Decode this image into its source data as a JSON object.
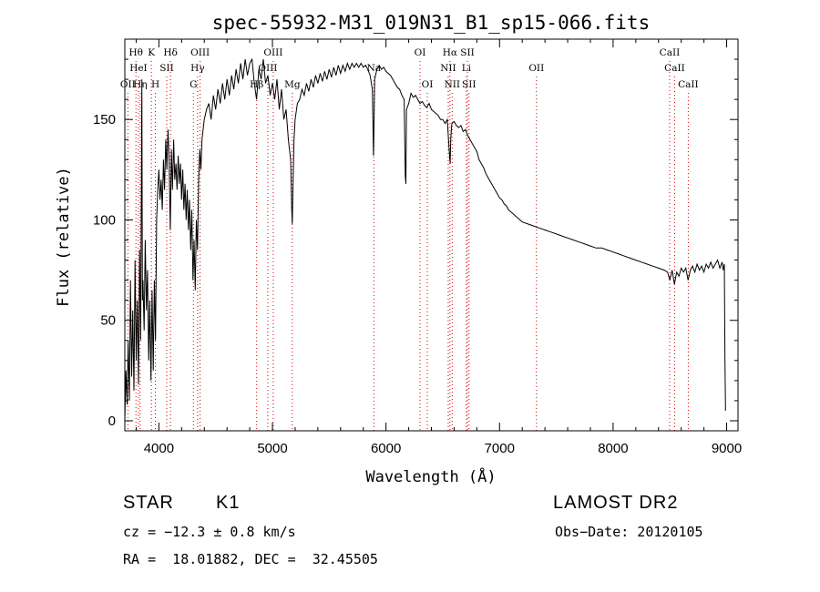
{
  "chart_data": {
    "type": "line",
    "title": "spec-55932-M31_019N31_B1_sp15-066.fits",
    "xlabel": "Wavelength (Å)",
    "ylabel": "Flux (relative)",
    "xlim": [
      3700,
      9100
    ],
    "ylim": [
      -5,
      190
    ],
    "x_ticks": [
      4000,
      5000,
      6000,
      7000,
      8000,
      9000
    ],
    "y_ticks": [
      0,
      50,
      100,
      150
    ],
    "grid": false,
    "series": [
      {
        "values": [
          [
            3700,
            0
          ],
          [
            3710,
            25
          ],
          [
            3720,
            8
          ],
          [
            3730,
            40
          ],
          [
            3740,
            10
          ],
          [
            3750,
            70
          ],
          [
            3760,
            22
          ],
          [
            3770,
            55
          ],
          [
            3780,
            15
          ],
          [
            3790,
            80
          ],
          [
            3800,
            30
          ],
          [
            3810,
            60
          ],
          [
            3820,
            18
          ],
          [
            3830,
            85
          ],
          [
            3840,
            40
          ],
          [
            3850,
            170
          ],
          [
            3855,
            60
          ],
          [
            3860,
            70
          ],
          [
            3870,
            45
          ],
          [
            3880,
            90
          ],
          [
            3890,
            55
          ],
          [
            3900,
            75
          ],
          [
            3910,
            30
          ],
          [
            3920,
            60
          ],
          [
            3930,
            20
          ],
          [
            3940,
            65
          ],
          [
            3950,
            25
          ],
          [
            3960,
            70
          ],
          [
            3970,
            40
          ],
          [
            3980,
            100
          ],
          [
            3990,
            115
          ],
          [
            4000,
            125
          ],
          [
            4010,
            110
          ],
          [
            4020,
            120
          ],
          [
            4030,
            105
          ],
          [
            4040,
            130
          ],
          [
            4050,
            115
          ],
          [
            4060,
            140
          ],
          [
            4070,
            125
          ],
          [
            4080,
            145
          ],
          [
            4090,
            130
          ],
          [
            4100,
            95
          ],
          [
            4110,
            135
          ],
          [
            4120,
            115
          ],
          [
            4130,
            140
          ],
          [
            4140,
            120
          ],
          [
            4150,
            128
          ],
          [
            4160,
            115
          ],
          [
            4170,
            132
          ],
          [
            4180,
            118
          ],
          [
            4190,
            128
          ],
          [
            4200,
            110
          ],
          [
            4210,
            125
          ],
          [
            4220,
            105
          ],
          [
            4230,
            118
          ],
          [
            4240,
            100
          ],
          [
            4250,
            115
          ],
          [
            4260,
            95
          ],
          [
            4270,
            110
          ],
          [
            4280,
            85
          ],
          [
            4290,
            105
          ],
          [
            4300,
            70
          ],
          [
            4310,
            90
          ],
          [
            4320,
            65
          ],
          [
            4330,
            100
          ],
          [
            4340,
            85
          ],
          [
            4350,
            120
          ],
          [
            4360,
            135
          ],
          [
            4370,
            125
          ],
          [
            4380,
            140
          ],
          [
            4400,
            150
          ],
          [
            4420,
            155
          ],
          [
            4440,
            158
          ],
          [
            4460,
            150
          ],
          [
            4480,
            162
          ],
          [
            4500,
            155
          ],
          [
            4520,
            165
          ],
          [
            4540,
            158
          ],
          [
            4560,
            168
          ],
          [
            4580,
            160
          ],
          [
            4600,
            170
          ],
          [
            4620,
            162
          ],
          [
            4640,
            172
          ],
          [
            4660,
            165
          ],
          [
            4680,
            175
          ],
          [
            4700,
            168
          ],
          [
            4720,
            178
          ],
          [
            4740,
            170
          ],
          [
            4760,
            180
          ],
          [
            4780,
            172
          ],
          [
            4800,
            178
          ],
          [
            4820,
            180
          ],
          [
            4840,
            168
          ],
          [
            4860,
            160
          ],
          [
            4880,
            175
          ],
          [
            4900,
            170
          ],
          [
            4920,
            180
          ],
          [
            4940,
            168
          ],
          [
            4960,
            172
          ],
          [
            4980,
            162
          ],
          [
            5000,
            168
          ],
          [
            5020,
            160
          ],
          [
            5040,
            170
          ],
          [
            5060,
            155
          ],
          [
            5080,
            165
          ],
          [
            5100,
            150
          ],
          [
            5120,
            155
          ],
          [
            5140,
            140
          ],
          [
            5160,
            130
          ],
          [
            5170,
            105
          ],
          [
            5175,
            98
          ],
          [
            5180,
            115
          ],
          [
            5190,
            140
          ],
          [
            5200,
            150
          ],
          [
            5220,
            158
          ],
          [
            5240,
            160
          ],
          [
            5260,
            165
          ],
          [
            5280,
            162
          ],
          [
            5300,
            168
          ],
          [
            5320,
            164
          ],
          [
            5340,
            170
          ],
          [
            5360,
            166
          ],
          [
            5380,
            172
          ],
          [
            5400,
            168
          ],
          [
            5420,
            173
          ],
          [
            5440,
            169
          ],
          [
            5460,
            174
          ],
          [
            5480,
            170
          ],
          [
            5500,
            175
          ],
          [
            5520,
            171
          ],
          [
            5540,
            176
          ],
          [
            5560,
            172
          ],
          [
            5580,
            177
          ],
          [
            5600,
            173
          ],
          [
            5620,
            177
          ],
          [
            5640,
            174
          ],
          [
            5660,
            178
          ],
          [
            5680,
            175
          ],
          [
            5700,
            178
          ],
          [
            5720,
            176
          ],
          [
            5740,
            178
          ],
          [
            5760,
            176
          ],
          [
            5780,
            178
          ],
          [
            5800,
            176
          ],
          [
            5820,
            177
          ],
          [
            5840,
            175
          ],
          [
            5860,
            172
          ],
          [
            5880,
            165
          ],
          [
            5890,
            132
          ],
          [
            5895,
            150
          ],
          [
            5900,
            170
          ],
          [
            5920,
            175
          ],
          [
            5940,
            177
          ],
          [
            5960,
            175
          ],
          [
            5980,
            176
          ],
          [
            6000,
            174
          ],
          [
            6020,
            173
          ],
          [
            6040,
            172
          ],
          [
            6060,
            170
          ],
          [
            6080,
            168
          ],
          [
            6100,
            166
          ],
          [
            6120,
            165
          ],
          [
            6140,
            162
          ],
          [
            6160,
            160
          ],
          [
            6170,
            122
          ],
          [
            6175,
            118
          ],
          [
            6180,
            155
          ],
          [
            6200,
            158
          ],
          [
            6220,
            163
          ],
          [
            6240,
            161
          ],
          [
            6260,
            162
          ],
          [
            6280,
            160
          ],
          [
            6300,
            158
          ],
          [
            6320,
            159
          ],
          [
            6340,
            157
          ],
          [
            6360,
            156
          ],
          [
            6380,
            158
          ],
          [
            6400,
            155
          ],
          [
            6420,
            154
          ],
          [
            6440,
            153
          ],
          [
            6460,
            152
          ],
          [
            6480,
            150
          ],
          [
            6500,
            150
          ],
          [
            6520,
            148
          ],
          [
            6540,
            150
          ],
          [
            6560,
            132
          ],
          [
            6565,
            128
          ],
          [
            6570,
            140
          ],
          [
            6580,
            148
          ],
          [
            6600,
            149
          ],
          [
            6620,
            147
          ],
          [
            6640,
            146
          ],
          [
            6660,
            147
          ],
          [
            6680,
            144
          ],
          [
            6700,
            145
          ],
          [
            6720,
            142
          ],
          [
            6740,
            140
          ],
          [
            6760,
            138
          ],
          [
            6780,
            136
          ],
          [
            6800,
            134
          ],
          [
            6820,
            130
          ],
          [
            6840,
            128
          ],
          [
            6860,
            126
          ],
          [
            6880,
            123
          ],
          [
            6900,
            121
          ],
          [
            6920,
            119
          ],
          [
            6940,
            117
          ],
          [
            6960,
            115
          ],
          [
            6980,
            113
          ],
          [
            7000,
            111
          ],
          [
            7020,
            110
          ],
          [
            7040,
            108
          ],
          [
            7060,
            107
          ],
          [
            7080,
            105
          ],
          [
            7100,
            104
          ],
          [
            7120,
            103
          ],
          [
            7140,
            102
          ],
          [
            7160,
            101
          ],
          [
            7180,
            100
          ],
          [
            7200,
            99
          ],
          [
            7250,
            98
          ],
          [
            7300,
            97
          ],
          [
            7350,
            96
          ],
          [
            7400,
            95
          ],
          [
            7450,
            94
          ],
          [
            7500,
            93
          ],
          [
            7550,
            92
          ],
          [
            7600,
            91
          ],
          [
            7650,
            90
          ],
          [
            7700,
            89
          ],
          [
            7750,
            88
          ],
          [
            7800,
            87
          ],
          [
            7850,
            86
          ],
          [
            7900,
            86
          ],
          [
            7950,
            85
          ],
          [
            8000,
            84
          ],
          [
            8050,
            83
          ],
          [
            8100,
            82
          ],
          [
            8150,
            81
          ],
          [
            8200,
            80
          ],
          [
            8250,
            79
          ],
          [
            8300,
            78
          ],
          [
            8350,
            77
          ],
          [
            8400,
            76
          ],
          [
            8450,
            75
          ],
          [
            8480,
            74
          ],
          [
            8500,
            70
          ],
          [
            8520,
            75
          ],
          [
            8540,
            68
          ],
          [
            8560,
            74
          ],
          [
            8580,
            72
          ],
          [
            8600,
            76
          ],
          [
            8620,
            74
          ],
          [
            8640,
            76
          ],
          [
            8660,
            70
          ],
          [
            8680,
            75
          ],
          [
            8700,
            77
          ],
          [
            8720,
            74
          ],
          [
            8740,
            78
          ],
          [
            8760,
            75
          ],
          [
            8780,
            77
          ],
          [
            8800,
            74
          ],
          [
            8820,
            78
          ],
          [
            8840,
            76
          ],
          [
            8860,
            79
          ],
          [
            8880,
            76
          ],
          [
            8900,
            78
          ],
          [
            8920,
            80
          ],
          [
            8940,
            76
          ],
          [
            8960,
            79
          ],
          [
            8970,
            75
          ],
          [
            8980,
            78
          ],
          [
            8985,
            30
          ],
          [
            8990,
            5
          ]
        ]
      }
    ],
    "line_markers": [
      {
        "label": "OII",
        "x": 3727,
        "row": 3,
        "color": "#cc0000"
      },
      {
        "label": "Hθ",
        "x": 3798,
        "row": 1,
        "color": "#cc0000"
      },
      {
        "label": "Hη",
        "x": 3835,
        "row": 3,
        "color": "#cc0000"
      },
      {
        "label": "HeI",
        "x": 3820,
        "row": 2,
        "color": "#cc0000"
      },
      {
        "label": "K",
        "x": 3934,
        "row": 1,
        "color": "#cc0000"
      },
      {
        "label": "SII",
        "x": 4069,
        "row": 2,
        "color": "#cc0000"
      },
      {
        "label": "H",
        "x": 3969,
        "row": 3,
        "color": "#cc0000"
      },
      {
        "label": "Hδ",
        "x": 4102,
        "row": 1,
        "color": "#cc0000"
      },
      {
        "label": "OIII",
        "x": 4363,
        "row": 1,
        "color": "#cc0000"
      },
      {
        "label": "Hγ",
        "x": 4341,
        "row": 2,
        "color": "#cc0000"
      },
      {
        "label": "G",
        "x": 4304,
        "row": 3,
        "color": "#cc0000"
      },
      {
        "label": "Hβ",
        "x": 4861,
        "row": 3,
        "color": "#cc0000"
      },
      {
        "label": "OIII",
        "x": 5007,
        "row": 1,
        "color": "#cc0000"
      },
      {
        "label": "OIII",
        "x": 4959,
        "row": 2,
        "color": "#cc0000"
      },
      {
        "label": "Mg",
        "x": 5175,
        "row": 3,
        "color": "#cc0000"
      },
      {
        "label": "Na",
        "x": 5893,
        "row": 2,
        "color": "#cc0000"
      },
      {
        "label": "OI",
        "x": 6300,
        "row": 1,
        "color": "#cc0000"
      },
      {
        "label": "OI",
        "x": 6364,
        "row": 3,
        "color": "#cc0000"
      },
      {
        "label": "Hα",
        "x": 6563,
        "row": 1,
        "color": "#cc0000"
      },
      {
        "label": "SII",
        "x": 6717,
        "row": 1,
        "color": "#cc0000"
      },
      {
        "label": "NII",
        "x": 6548,
        "row": 2,
        "color": "#cc0000"
      },
      {
        "label": "Li",
        "x": 6708,
        "row": 2,
        "color": "#cc0000"
      },
      {
        "label": "NII",
        "x": 6583,
        "row": 3,
        "color": "#cc0000"
      },
      {
        "label": "SII",
        "x": 6731,
        "row": 3,
        "color": "#cc0000"
      },
      {
        "label": "OII",
        "x": 7325,
        "row": 2,
        "color": "#cc0000"
      },
      {
        "label": "CaII",
        "x": 8498,
        "row": 1,
        "color": "#cc0000"
      },
      {
        "label": "CaII",
        "x": 8542,
        "row": 2,
        "color": "#cc0000"
      },
      {
        "label": "CaII",
        "x": 8662,
        "row": 3,
        "color": "#cc0000"
      }
    ]
  },
  "info": {
    "class_label": "STAR",
    "subclass": "K1",
    "survey": "LAMOST DR2",
    "cz": "cz = −12.3 ± 0.8 km/s",
    "obs_date": "Obs−Date: 20120105",
    "radec": "RA =  18.01882, DEC =  32.45505"
  }
}
